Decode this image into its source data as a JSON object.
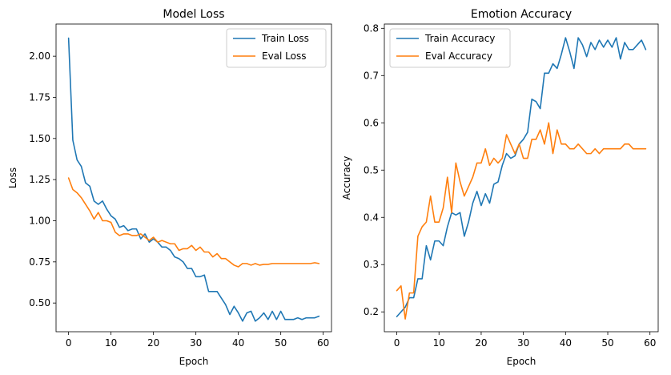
{
  "chart_data": [
    {
      "type": "line",
      "title": "Model Loss",
      "xlabel": "Epoch",
      "ylabel": "Loss",
      "xlim": [
        -2.95,
        61.95
      ],
      "ylim": [
        0.3255,
        2.1955
      ],
      "xticks": [
        0,
        10,
        20,
        30,
        40,
        50,
        60
      ],
      "yticks": [
        0.5,
        0.75,
        1.0,
        1.25,
        1.5,
        1.75,
        2.0
      ],
      "ytick_labels": [
        "0.50",
        "0.75",
        "1.00",
        "1.25",
        "1.50",
        "1.75",
        "2.00"
      ],
      "legend": "top-right",
      "grid": false,
      "series": [
        {
          "name": "Train Loss",
          "color": "#1f77b4",
          "x": [
            0,
            1,
            2,
            3,
            4,
            5,
            6,
            7,
            8,
            9,
            10,
            11,
            12,
            13,
            14,
            15,
            16,
            17,
            18,
            19,
            20,
            21,
            22,
            23,
            24,
            25,
            26,
            27,
            28,
            29,
            30,
            31,
            32,
            33,
            34,
            35,
            36,
            37,
            38,
            39,
            40,
            41,
            42,
            43,
            44,
            45,
            46,
            47,
            48,
            49,
            50,
            51,
            52,
            53,
            54,
            55,
            56,
            57,
            58,
            59
          ],
          "values": [
            2.11,
            1.49,
            1.37,
            1.33,
            1.23,
            1.21,
            1.12,
            1.1,
            1.12,
            1.07,
            1.03,
            1.01,
            0.96,
            0.97,
            0.94,
            0.95,
            0.95,
            0.89,
            0.92,
            0.87,
            0.89,
            0.87,
            0.84,
            0.84,
            0.82,
            0.78,
            0.77,
            0.75,
            0.71,
            0.71,
            0.66,
            0.66,
            0.67,
            0.57,
            0.57,
            0.57,
            0.53,
            0.49,
            0.43,
            0.48,
            0.44,
            0.39,
            0.44,
            0.45,
            0.39,
            0.41,
            0.44,
            0.4,
            0.45,
            0.4,
            0.45,
            0.4,
            0.4,
            0.4,
            0.41,
            0.4,
            0.41,
            0.41,
            0.41,
            0.42
          ]
        },
        {
          "name": "Eval Loss",
          "color": "#ff7f0e",
          "x": [
            0,
            1,
            2,
            3,
            4,
            5,
            6,
            7,
            8,
            9,
            10,
            11,
            12,
            13,
            14,
            15,
            16,
            17,
            18,
            19,
            20,
            21,
            22,
            23,
            24,
            25,
            26,
            27,
            28,
            29,
            30,
            31,
            32,
            33,
            34,
            35,
            36,
            37,
            38,
            39,
            40,
            41,
            42,
            43,
            44,
            45,
            46,
            47,
            48,
            49,
            50,
            51,
            52,
            53,
            54,
            55,
            56,
            57,
            58,
            59
          ],
          "values": [
            1.26,
            1.19,
            1.17,
            1.14,
            1.1,
            1.06,
            1.01,
            1.05,
            1.0,
            1.0,
            0.99,
            0.93,
            0.91,
            0.92,
            0.92,
            0.91,
            0.91,
            0.92,
            0.9,
            0.88,
            0.9,
            0.87,
            0.88,
            0.87,
            0.86,
            0.86,
            0.82,
            0.83,
            0.83,
            0.85,
            0.82,
            0.84,
            0.81,
            0.81,
            0.78,
            0.8,
            0.77,
            0.77,
            0.75,
            0.73,
            0.72,
            0.74,
            0.74,
            0.73,
            0.74,
            0.73,
            0.735,
            0.735,
            0.74,
            0.74,
            0.74,
            0.74,
            0.74,
            0.74,
            0.74,
            0.74,
            0.74,
            0.74,
            0.745,
            0.74
          ]
        }
      ]
    },
    {
      "type": "line",
      "title": "Emotion Accuracy",
      "xlabel": "Epoch",
      "ylabel": "Accuracy",
      "xlim": [
        -2.95,
        61.95
      ],
      "ylim": [
        0.158,
        0.809
      ],
      "xticks": [
        0,
        10,
        20,
        30,
        40,
        50,
        60
      ],
      "yticks": [
        0.2,
        0.3,
        0.4,
        0.5,
        0.6,
        0.7,
        0.8
      ],
      "ytick_labels": [
        "0.2",
        "0.3",
        "0.4",
        "0.5",
        "0.6",
        "0.7",
        "0.8"
      ],
      "legend": "top-left",
      "grid": false,
      "series": [
        {
          "name": "Train Accuracy",
          "color": "#1f77b4",
          "x": [
            0,
            1,
            2,
            3,
            4,
            5,
            6,
            7,
            8,
            9,
            10,
            11,
            12,
            13,
            14,
            15,
            16,
            17,
            18,
            19,
            20,
            21,
            22,
            23,
            24,
            25,
            26,
            27,
            28,
            29,
            30,
            31,
            32,
            33,
            34,
            35,
            36,
            37,
            38,
            39,
            40,
            41,
            42,
            43,
            44,
            45,
            46,
            47,
            48,
            49,
            50,
            51,
            52,
            53,
            54,
            55,
            56,
            57,
            58,
            59
          ],
          "values": [
            0.19,
            0.2,
            0.21,
            0.23,
            0.23,
            0.27,
            0.27,
            0.34,
            0.31,
            0.35,
            0.35,
            0.34,
            0.38,
            0.41,
            0.405,
            0.41,
            0.36,
            0.39,
            0.43,
            0.455,
            0.425,
            0.45,
            0.43,
            0.47,
            0.475,
            0.51,
            0.535,
            0.525,
            0.53,
            0.555,
            0.565,
            0.58,
            0.65,
            0.645,
            0.63,
            0.705,
            0.705,
            0.725,
            0.715,
            0.745,
            0.78,
            0.75,
            0.715,
            0.78,
            0.765,
            0.74,
            0.77,
            0.755,
            0.775,
            0.76,
            0.775,
            0.76,
            0.78,
            0.735,
            0.77,
            0.755,
            0.755,
            0.765,
            0.775,
            0.755
          ]
        },
        {
          "name": "Eval Accuracy",
          "color": "#ff7f0e",
          "x": [
            0,
            1,
            2,
            3,
            4,
            5,
            6,
            7,
            8,
            9,
            10,
            11,
            12,
            13,
            14,
            15,
            16,
            17,
            18,
            19,
            20,
            21,
            22,
            23,
            24,
            25,
            26,
            27,
            28,
            29,
            30,
            31,
            32,
            33,
            34,
            35,
            36,
            37,
            38,
            39,
            40,
            41,
            42,
            43,
            44,
            45,
            46,
            47,
            48,
            49,
            50,
            51,
            52,
            53,
            54,
            55,
            56,
            57,
            58,
            59
          ],
          "values": [
            0.245,
            0.255,
            0.185,
            0.24,
            0.24,
            0.36,
            0.38,
            0.39,
            0.445,
            0.39,
            0.39,
            0.42,
            0.485,
            0.41,
            0.515,
            0.475,
            0.445,
            0.465,
            0.485,
            0.515,
            0.515,
            0.545,
            0.51,
            0.525,
            0.515,
            0.525,
            0.575,
            0.555,
            0.535,
            0.555,
            0.525,
            0.525,
            0.565,
            0.565,
            0.585,
            0.555,
            0.6,
            0.535,
            0.585,
            0.555,
            0.555,
            0.545,
            0.545,
            0.555,
            0.545,
            0.535,
            0.535,
            0.545,
            0.535,
            0.545,
            0.545,
            0.545,
            0.545,
            0.545,
            0.555,
            0.555,
            0.545,
            0.545,
            0.545,
            0.545
          ]
        }
      ]
    }
  ]
}
